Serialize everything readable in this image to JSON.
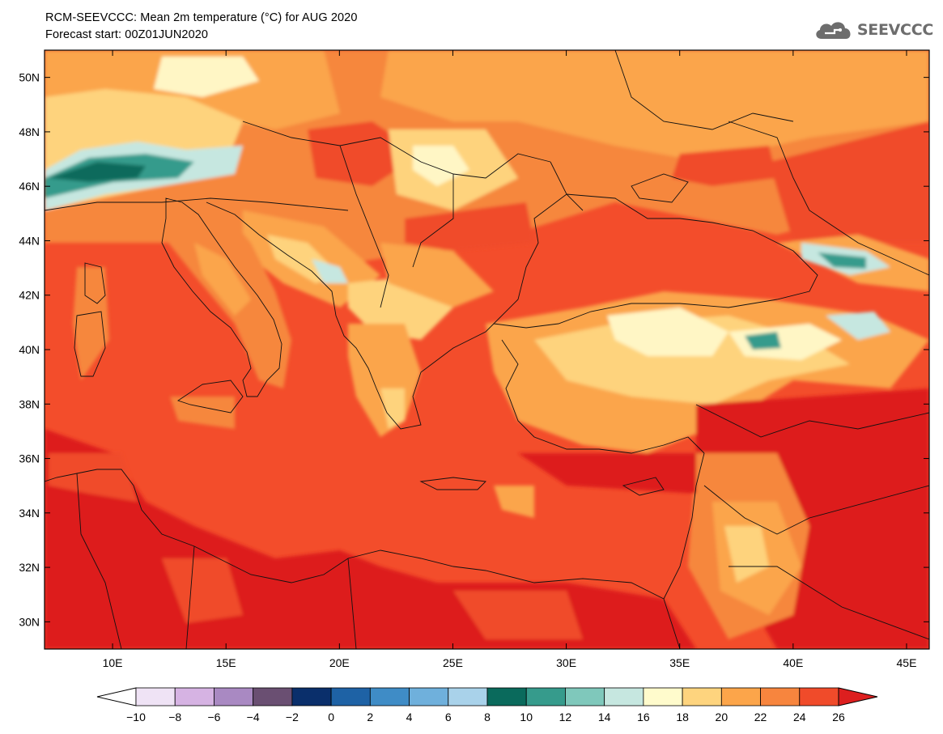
{
  "header": {
    "title": "RCM-SEEVCCC: Mean 2m temperature (°C) for AUG 2020",
    "subtitle": "Forecast start: 00Z01JUN2020"
  },
  "logo": {
    "text": "SEEVCCC",
    "icon": "cloud-icon",
    "color": "#6d6d6d"
  },
  "map": {
    "lon_range": [
      7,
      46
    ],
    "lat_range": [
      29,
      51
    ],
    "lon_ticks": [
      "10E",
      "15E",
      "20E",
      "25E",
      "30E",
      "35E",
      "40E",
      "45E"
    ],
    "lat_ticks": [
      "30N",
      "32N",
      "34N",
      "36N",
      "38N",
      "40N",
      "42N",
      "44N",
      "46N",
      "48N",
      "50N"
    ],
    "lon_tick_values": [
      10,
      15,
      20,
      25,
      30,
      35,
      40,
      45
    ],
    "lat_tick_values": [
      30,
      32,
      34,
      36,
      38,
      40,
      42,
      44,
      46,
      48,
      50
    ]
  },
  "colorbar": {
    "labels": [
      "−10",
      "−8",
      "−6",
      "−4",
      "−2",
      "0",
      "2",
      "4",
      "6",
      "8",
      "10",
      "12",
      "14",
      "16",
      "18",
      "20",
      "22",
      "24",
      "26"
    ],
    "colors": [
      "#ffffff",
      "#efe3f5",
      "#d6b3e3",
      "#a989c2",
      "#6a4f72",
      "#0a2f6b",
      "#1e62a5",
      "#3f8cc6",
      "#6fb0dc",
      "#a9d2ea",
      "#0a6a5c",
      "#369b8c",
      "#7fc8bb",
      "#c6e7e0",
      "#fffbcc",
      "#fed47e",
      "#fca54a",
      "#f7853e",
      "#f04b2a",
      "#dd1f1f"
    ]
  },
  "palette": {
    "sea_med": "#f34d2b",
    "hot_red": "#e0231f",
    "orange": "#f6873e",
    "light_orange": "#fba54c",
    "yellow": "#fed37d",
    "pale": "#fff6c5",
    "teal": "#35998a",
    "dark_teal": "#0d6b5c",
    "pale_teal": "#c9e8e0"
  }
}
